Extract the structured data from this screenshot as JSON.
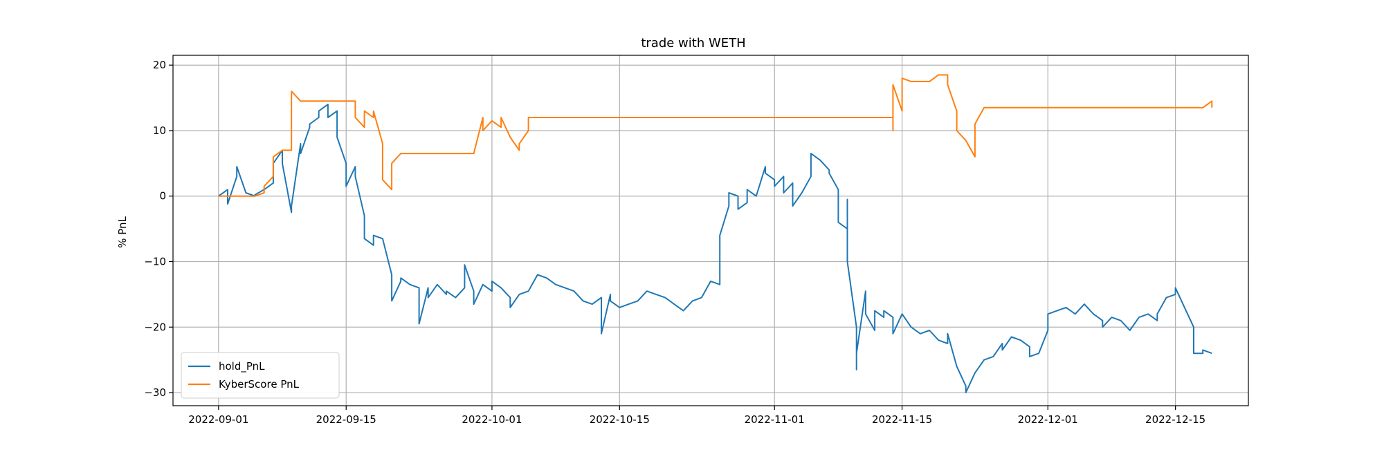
{
  "chart_data": {
    "type": "line",
    "title": "trade with WETH",
    "xlabel": "",
    "ylabel": "% PnL",
    "x_type": "date",
    "xlim": [
      "2022-08-27",
      "2022-12-23"
    ],
    "ylim": [
      -32,
      21.5
    ],
    "grid": true,
    "legend_position": "lower-left",
    "x_ticks": [
      "2022-09-01",
      "2022-09-15",
      "2022-10-01",
      "2022-10-15",
      "2022-11-01",
      "2022-11-15",
      "2022-12-01",
      "2022-12-15"
    ],
    "y_ticks": [
      20,
      10,
      0,
      -10,
      -20,
      -30
    ],
    "y_tick_labels": [
      "20",
      "10",
      "0",
      "−10",
      "−20",
      "−30"
    ],
    "series": [
      {
        "name": "hold_PnL",
        "color": "#1f77b4",
        "points": [
          [
            "2022-09-01",
            0
          ],
          [
            "2022-09-02",
            1
          ],
          [
            "2022-09-02",
            -1.2
          ],
          [
            "2022-09-03",
            3
          ],
          [
            "2022-09-03",
            4.5
          ],
          [
            "2022-09-04",
            0.5
          ],
          [
            "2022-09-05",
            0
          ],
          [
            "2022-09-05",
            0.2
          ],
          [
            "2022-09-06",
            1
          ],
          [
            "2022-09-07",
            2
          ],
          [
            "2022-09-07",
            5
          ],
          [
            "2022-09-08",
            7
          ],
          [
            "2022-09-08",
            5
          ],
          [
            "2022-09-09",
            -2.5
          ],
          [
            "2022-09-09",
            -1.5
          ],
          [
            "2022-09-10",
            8
          ],
          [
            "2022-09-10",
            6.5
          ],
          [
            "2022-09-11",
            10.5
          ],
          [
            "2022-09-11",
            11
          ],
          [
            "2022-09-12",
            12
          ],
          [
            "2022-09-12",
            13
          ],
          [
            "2022-09-13",
            14
          ],
          [
            "2022-09-13",
            12
          ],
          [
            "2022-09-14",
            13
          ],
          [
            "2022-09-14",
            9
          ],
          [
            "2022-09-15",
            5
          ],
          [
            "2022-09-15",
            1.5
          ],
          [
            "2022-09-16",
            4.5
          ],
          [
            "2022-09-16",
            3
          ],
          [
            "2022-09-17",
            -3
          ],
          [
            "2022-09-17",
            -6.5
          ],
          [
            "2022-09-18",
            -7.5
          ],
          [
            "2022-09-18",
            -6
          ],
          [
            "2022-09-19",
            -6.5
          ],
          [
            "2022-09-20",
            -12
          ],
          [
            "2022-09-20",
            -16
          ],
          [
            "2022-09-21",
            -13
          ],
          [
            "2022-09-21",
            -12.5
          ],
          [
            "2022-09-22",
            -13.5
          ],
          [
            "2022-09-23",
            -14
          ],
          [
            "2022-09-23",
            -19.5
          ],
          [
            "2022-09-24",
            -14
          ],
          [
            "2022-09-24",
            -15.5
          ],
          [
            "2022-09-25",
            -13.5
          ],
          [
            "2022-09-26",
            -15
          ],
          [
            "2022-09-26",
            -14.5
          ],
          [
            "2022-09-27",
            -15.5
          ],
          [
            "2022-09-28",
            -14
          ],
          [
            "2022-09-28",
            -10.5
          ],
          [
            "2022-09-29",
            -14.5
          ],
          [
            "2022-09-29",
            -16.5
          ],
          [
            "2022-09-30",
            -13.5
          ],
          [
            "2022-10-01",
            -14.5
          ],
          [
            "2022-10-01",
            -13
          ],
          [
            "2022-10-02",
            -14
          ],
          [
            "2022-10-03",
            -15.5
          ],
          [
            "2022-10-03",
            -17
          ],
          [
            "2022-10-04",
            -15
          ],
          [
            "2022-10-05",
            -14.5
          ],
          [
            "2022-10-06",
            -12
          ],
          [
            "2022-10-07",
            -12.5
          ],
          [
            "2022-10-08",
            -13.5
          ],
          [
            "2022-10-09",
            -14
          ],
          [
            "2022-10-10",
            -14.5
          ],
          [
            "2022-10-11",
            -16
          ],
          [
            "2022-10-12",
            -16.5
          ],
          [
            "2022-10-13",
            -15.5
          ],
          [
            "2022-10-13",
            -21
          ],
          [
            "2022-10-14",
            -15
          ],
          [
            "2022-10-14",
            -16
          ],
          [
            "2022-10-15",
            -17
          ],
          [
            "2022-10-16",
            -16.5
          ],
          [
            "2022-10-17",
            -16
          ],
          [
            "2022-10-18",
            -14.5
          ],
          [
            "2022-10-19",
            -15
          ],
          [
            "2022-10-20",
            -15.5
          ],
          [
            "2022-10-21",
            -16.5
          ],
          [
            "2022-10-22",
            -17.5
          ],
          [
            "2022-10-23",
            -16
          ],
          [
            "2022-10-24",
            -15.5
          ],
          [
            "2022-10-25",
            -13
          ],
          [
            "2022-10-26",
            -13.5
          ],
          [
            "2022-10-26",
            -6
          ],
          [
            "2022-10-27",
            -1.5
          ],
          [
            "2022-10-27",
            0.5
          ],
          [
            "2022-10-28",
            0
          ],
          [
            "2022-10-28",
            -2
          ],
          [
            "2022-10-29",
            -1
          ],
          [
            "2022-10-29",
            1
          ],
          [
            "2022-10-30",
            0
          ],
          [
            "2022-10-31",
            4.5
          ],
          [
            "2022-10-31",
            3.5
          ],
          [
            "2022-11-01",
            2.5
          ],
          [
            "2022-11-01",
            1.5
          ],
          [
            "2022-11-02",
            3
          ],
          [
            "2022-11-02",
            0.5
          ],
          [
            "2022-11-03",
            2
          ],
          [
            "2022-11-03",
            -1.5
          ],
          [
            "2022-11-04",
            0.5
          ],
          [
            "2022-11-05",
            3
          ],
          [
            "2022-11-05",
            6.5
          ],
          [
            "2022-11-06",
            5.5
          ],
          [
            "2022-11-07",
            4
          ],
          [
            "2022-11-07",
            3.5
          ],
          [
            "2022-11-08",
            1
          ],
          [
            "2022-11-08",
            -4
          ],
          [
            "2022-11-09",
            -5
          ],
          [
            "2022-11-09",
            -0.5
          ],
          [
            "2022-11-09",
            -10
          ],
          [
            "2022-11-10",
            -20
          ],
          [
            "2022-11-10",
            -26.5
          ],
          [
            "2022-11-10",
            -24
          ],
          [
            "2022-11-11",
            -14.5
          ],
          [
            "2022-11-11",
            -18
          ],
          [
            "2022-11-12",
            -20.5
          ],
          [
            "2022-11-12",
            -17.5
          ],
          [
            "2022-11-13",
            -18.5
          ],
          [
            "2022-11-13",
            -17.5
          ],
          [
            "2022-11-14",
            -18.5
          ],
          [
            "2022-11-14",
            -21
          ],
          [
            "2022-11-15",
            -18
          ],
          [
            "2022-11-16",
            -20
          ],
          [
            "2022-11-17",
            -21
          ],
          [
            "2022-11-18",
            -20.5
          ],
          [
            "2022-11-19",
            -22
          ],
          [
            "2022-11-20",
            -22.5
          ],
          [
            "2022-11-20",
            -21
          ],
          [
            "2022-11-21",
            -26
          ],
          [
            "2022-11-22",
            -29
          ],
          [
            "2022-11-22",
            -30
          ],
          [
            "2022-11-23",
            -27
          ],
          [
            "2022-11-24",
            -25
          ],
          [
            "2022-11-25",
            -24.5
          ],
          [
            "2022-11-26",
            -22.5
          ],
          [
            "2022-11-26",
            -23.5
          ],
          [
            "2022-11-27",
            -21.5
          ],
          [
            "2022-11-28",
            -22
          ],
          [
            "2022-11-29",
            -23
          ],
          [
            "2022-11-29",
            -24.5
          ],
          [
            "2022-11-30",
            -24
          ],
          [
            "2022-12-01",
            -20.5
          ],
          [
            "2022-12-01",
            -18
          ],
          [
            "2022-12-02",
            -17.5
          ],
          [
            "2022-12-03",
            -17
          ],
          [
            "2022-12-04",
            -18
          ],
          [
            "2022-12-05",
            -16.5
          ],
          [
            "2022-12-06",
            -18
          ],
          [
            "2022-12-07",
            -19
          ],
          [
            "2022-12-07",
            -20
          ],
          [
            "2022-12-08",
            -18.5
          ],
          [
            "2022-12-09",
            -19
          ],
          [
            "2022-12-10",
            -20.5
          ],
          [
            "2022-12-11",
            -18.5
          ],
          [
            "2022-12-12",
            -18
          ],
          [
            "2022-12-13",
            -19
          ],
          [
            "2022-12-13",
            -18
          ],
          [
            "2022-12-14",
            -15.5
          ],
          [
            "2022-12-15",
            -15
          ],
          [
            "2022-12-15",
            -14
          ],
          [
            "2022-12-16",
            -17
          ],
          [
            "2022-12-17",
            -20
          ],
          [
            "2022-12-17",
            -24
          ],
          [
            "2022-12-18",
            -24
          ],
          [
            "2022-12-18",
            -23.5
          ],
          [
            "2022-12-19",
            -24
          ]
        ]
      },
      {
        "name": "KyberScore PnL",
        "color": "#ff7f0e",
        "points": [
          [
            "2022-09-01",
            0
          ],
          [
            "2022-09-01",
            0
          ],
          [
            "2022-09-02",
            0
          ],
          [
            "2022-09-03",
            0
          ],
          [
            "2022-09-04",
            0
          ],
          [
            "2022-09-05",
            0
          ],
          [
            "2022-09-06",
            0.5
          ],
          [
            "2022-09-06",
            1.5
          ],
          [
            "2022-09-07",
            3
          ],
          [
            "2022-09-07",
            6
          ],
          [
            "2022-09-08",
            7
          ],
          [
            "2022-09-09",
            7
          ],
          [
            "2022-09-09",
            16
          ],
          [
            "2022-09-10",
            14.5
          ],
          [
            "2022-09-11",
            14.5
          ],
          [
            "2022-09-12",
            14.5
          ],
          [
            "2022-09-13",
            14.5
          ],
          [
            "2022-09-14",
            14.5
          ],
          [
            "2022-09-15",
            14.5
          ],
          [
            "2022-09-16",
            14.5
          ],
          [
            "2022-09-16",
            12
          ],
          [
            "2022-09-17",
            10.5
          ],
          [
            "2022-09-17",
            13
          ],
          [
            "2022-09-18",
            12
          ],
          [
            "2022-09-18",
            13
          ],
          [
            "2022-09-19",
            8
          ],
          [
            "2022-09-19",
            2.5
          ],
          [
            "2022-09-20",
            1
          ],
          [
            "2022-09-20",
            5
          ],
          [
            "2022-09-21",
            6.5
          ],
          [
            "2022-09-22",
            6.5
          ],
          [
            "2022-09-24",
            6.5
          ],
          [
            "2022-09-26",
            6.5
          ],
          [
            "2022-09-28",
            6.5
          ],
          [
            "2022-09-29",
            6.5
          ],
          [
            "2022-09-30",
            12
          ],
          [
            "2022-09-30",
            10
          ],
          [
            "2022-10-01",
            11.5
          ],
          [
            "2022-10-02",
            10.5
          ],
          [
            "2022-10-02",
            12
          ],
          [
            "2022-10-03",
            9
          ],
          [
            "2022-10-04",
            7
          ],
          [
            "2022-10-04",
            8
          ],
          [
            "2022-10-05",
            10
          ],
          [
            "2022-10-05",
            12
          ],
          [
            "2022-10-10",
            12
          ],
          [
            "2022-10-20",
            12
          ],
          [
            "2022-10-30",
            12
          ],
          [
            "2022-11-05",
            12
          ],
          [
            "2022-11-13",
            12
          ],
          [
            "2022-11-14",
            12
          ],
          [
            "2022-11-14",
            10
          ],
          [
            "2022-11-14",
            17
          ],
          [
            "2022-11-15",
            13
          ],
          [
            "2022-11-15",
            18
          ],
          [
            "2022-11-16",
            17.5
          ],
          [
            "2022-11-17",
            17.5
          ],
          [
            "2022-11-18",
            17.5
          ],
          [
            "2022-11-19",
            18.5
          ],
          [
            "2022-11-20",
            18.5
          ],
          [
            "2022-11-20",
            17
          ],
          [
            "2022-11-21",
            13
          ],
          [
            "2022-11-21",
            10
          ],
          [
            "2022-11-22",
            8.5
          ],
          [
            "2022-11-23",
            6
          ],
          [
            "2022-11-23",
            11
          ],
          [
            "2022-11-24",
            13.5
          ],
          [
            "2022-11-30",
            13.5
          ],
          [
            "2022-12-05",
            13.5
          ],
          [
            "2022-12-10",
            13.5
          ],
          [
            "2022-12-15",
            13.5
          ],
          [
            "2022-12-18",
            13.5
          ],
          [
            "2022-12-19",
            14.5
          ],
          [
            "2022-12-19",
            13.5
          ]
        ]
      }
    ]
  }
}
